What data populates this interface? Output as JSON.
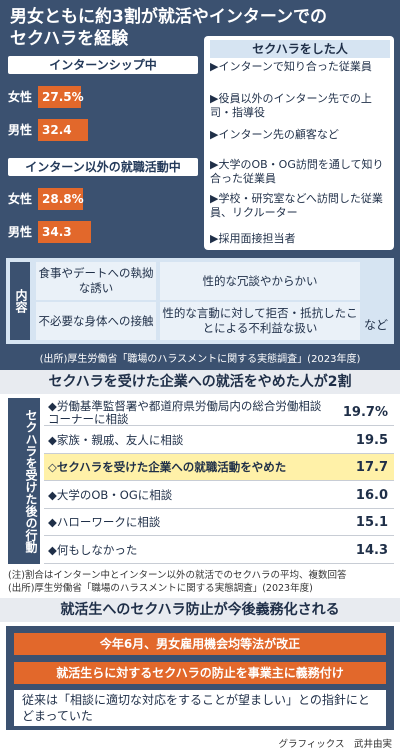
{
  "title": "男女ともに約3割が就活やインターンでのセクハラを経験",
  "chart_data": [
    {
      "type": "bar",
      "subtitle": "インターンシップ中",
      "categories": [
        "女性",
        "男性"
      ],
      "values": [
        27.5,
        32.4
      ],
      "value_labels": [
        "27.5%",
        "32.4"
      ],
      "color": "#e2682b",
      "xlim": [
        0,
        100
      ]
    },
    {
      "type": "bar",
      "subtitle": "インターン以外の就職活動中",
      "categories": [
        "女性",
        "男性"
      ],
      "values": [
        28.8,
        34.3
      ],
      "value_labels": [
        "28.8%",
        "34.3"
      ],
      "color": "#e2682b",
      "xlim": [
        0,
        100
      ]
    }
  ],
  "offenders_heading": "セクハラをした人",
  "offenders": [
    [
      "▶インターンで知り合った従業員",
      "▶役員以外のインターン先での上司・指導役",
      "▶インターン先の顧客など"
    ],
    [
      "▶大学のOB・OG訪問を通して知り合った従業員",
      "▶学校・研究室などへ訪問した従業員、リクルーター",
      "▶採用面接担当者"
    ]
  ],
  "content": {
    "label": "内容",
    "items": [
      "食事やデートへの執拗な誘い",
      "性的な冗談やからかい",
      "不必要な身体への接触",
      "性的な言動に対して拒否・抵抗したことによる不利益な扱い"
    ],
    "etc": "など"
  },
  "source1": "(出所)厚生労働省「職場のハラスメントに関する実態調査」(2023年度)",
  "actions": {
    "heading": "セクハラを受けた企業への就活をやめた人が2割",
    "side_label": "セクハラを受けた後の行動",
    "items": [
      {
        "label": "◆労働基準監督署や都道府県労働局内の総合労働相談コーナーに相談",
        "value": "19.7%"
      },
      {
        "label": "◆家族・親戚、友人に相談",
        "value": "19.5"
      },
      {
        "label": "◇セクハラを受けた企業への就職活動をやめた",
        "value": "17.7"
      },
      {
        "label": "◆大学のOB・OGに相談",
        "value": "16.0"
      },
      {
        "label": "◆ハローワークに相談",
        "value": "15.1"
      },
      {
        "label": "◆何もしなかった",
        "value": "14.3"
      }
    ]
  },
  "notes": [
    "(注)割合はインターン中とインターン以外の就活でのセクハラの平均、複数回答",
    "(出所)厚生労働省「職場のハラスメントに関する実態調査」(2023年度)"
  ],
  "future": {
    "heading": "就活生へのセクハラ防止が今後義務化される",
    "boxes": [
      "今年6月、男女雇用機会均等法が改正",
      "就活生らに対するセクハラの防止を事業主に義務付け"
    ],
    "note": "従来は「相談に適切な対応をすることが望ましい」との指針にとどまっていた"
  },
  "credit": "グラフィックス　武井由実"
}
